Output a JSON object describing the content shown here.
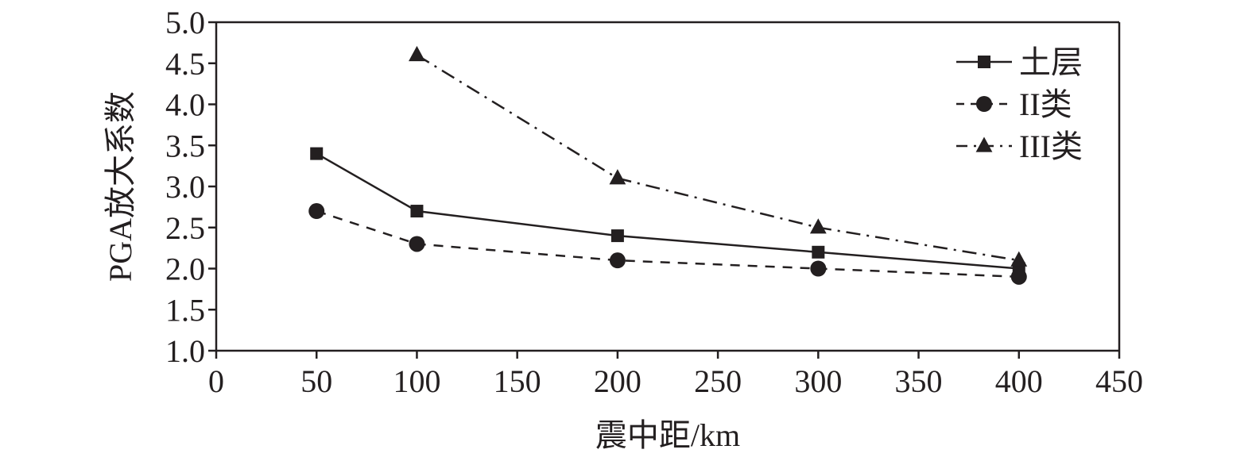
{
  "chart_data": {
    "type": "line",
    "title": "",
    "xlabel": "震中距/km",
    "ylabel": "PGA放大系数",
    "xlim": [
      0,
      450
    ],
    "ylim": [
      1.0,
      5.0
    ],
    "x_ticks": [
      "0",
      "50",
      "100",
      "150",
      "200",
      "250",
      "300",
      "350",
      "400",
      "450"
    ],
    "y_ticks": [
      "1.0",
      "1.5",
      "2.0",
      "2.5",
      "3.0",
      "3.5",
      "4.0",
      "4.5",
      "5.0"
    ],
    "grid": false,
    "legend_position": "top-right",
    "series": [
      {
        "name": "土层",
        "marker": "square",
        "line_style": "solid",
        "color": "#231f20",
        "x": [
          50,
          100,
          200,
          300,
          400
        ],
        "y": [
          3.4,
          2.7,
          2.4,
          2.2,
          2.0
        ]
      },
      {
        "name": "II类",
        "marker": "circle",
        "line_style": "dashed",
        "color": "#231f20",
        "x": [
          50,
          100,
          200,
          300,
          400
        ],
        "y": [
          2.7,
          2.3,
          2.1,
          2.0,
          1.9
        ]
      },
      {
        "name": "III类",
        "marker": "triangle",
        "line_style": "dash-dot",
        "color": "#231f20",
        "x": [
          100,
          200,
          300,
          400
        ],
        "y": [
          4.6,
          3.1,
          2.5,
          2.1
        ]
      }
    ]
  }
}
